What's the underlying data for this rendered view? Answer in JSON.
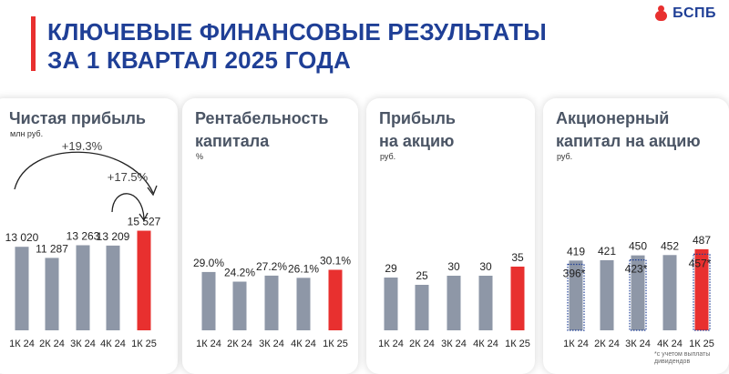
{
  "header": {
    "title_line1": "КЛЮЧЕВЫЕ ФИНАНСОВЫЕ РЕЗУЛЬТАТЫ",
    "title_line2": "ЗА 1 КВАРТАЛ 2025 ГОДА",
    "logo_text": "БСПБ",
    "accent_color": "#e8302f",
    "brand_color": "#1f3f96"
  },
  "panels": [
    {
      "title_line1": "Чистая прибыль",
      "title_line2": "",
      "unit": "млн руб."
    },
    {
      "title_line1": "Рентабельность",
      "title_line2": "капитала",
      "unit": "%"
    },
    {
      "title_line1": "Прибыль",
      "title_line2": "на акцию",
      "unit": "руб."
    },
    {
      "title_line1": "Акционерный",
      "title_line2": "капитал на акцию",
      "unit": "руб."
    }
  ],
  "footnote": "*с учетом выплаты дивидендов",
  "chart_data": [
    {
      "type": "bar",
      "title": "Чистая прибыль",
      "unit": "млн руб.",
      "categories": [
        "1К 24",
        "2К 24",
        "3К 24",
        "4К 24",
        "1К 25"
      ],
      "values": [
        13020,
        11287,
        13263,
        13209,
        15527
      ],
      "labels": [
        "13 020",
        "11 287",
        "13 263",
        "13 209",
        "15 527"
      ],
      "highlight_index": 4,
      "growth_annotations": [
        {
          "label": "+19.3%",
          "from": "1К 24",
          "to": "1К 25"
        },
        {
          "label": "+17.5%",
          "from": "4К 24",
          "to": "1К 25"
        }
      ]
    },
    {
      "type": "bar",
      "title": "Рентабельность капитала",
      "unit": "%",
      "categories": [
        "1К 24",
        "2К 24",
        "3К 24",
        "4К 24",
        "1К 25"
      ],
      "values": [
        29.0,
        24.2,
        27.2,
        26.1,
        30.1
      ],
      "labels": [
        "29.0%",
        "24.2%",
        "27.2%",
        "26.1%",
        "30.1%"
      ],
      "highlight_index": 4
    },
    {
      "type": "bar",
      "title": "Прибыль на акцию",
      "unit": "руб.",
      "categories": [
        "1К 24",
        "2К 24",
        "3К 24",
        "4К 24",
        "1К 25"
      ],
      "values": [
        29,
        25,
        30,
        30,
        35
      ],
      "labels": [
        "29",
        "25",
        "30",
        "30",
        "35"
      ],
      "highlight_index": 4
    },
    {
      "type": "bar",
      "title": "Акционерный капитал на акцию",
      "unit": "руб.",
      "categories": [
        "1К 24",
        "2К 24",
        "3К 24",
        "4К 24",
        "1К 25"
      ],
      "values": [
        419,
        421,
        450,
        452,
        487
      ],
      "labels": [
        "419",
        "421",
        "450",
        "452",
        "487"
      ],
      "after_dividends": [
        396,
        null,
        423,
        null,
        457
      ],
      "after_dividends_labels": [
        "396*",
        "",
        "423*",
        "",
        "457*"
      ],
      "highlight_index": 4
    }
  ],
  "colors": {
    "bar": "#8e97a7",
    "highlight": "#e8302f",
    "dividend_outline": "#1f3f96"
  }
}
